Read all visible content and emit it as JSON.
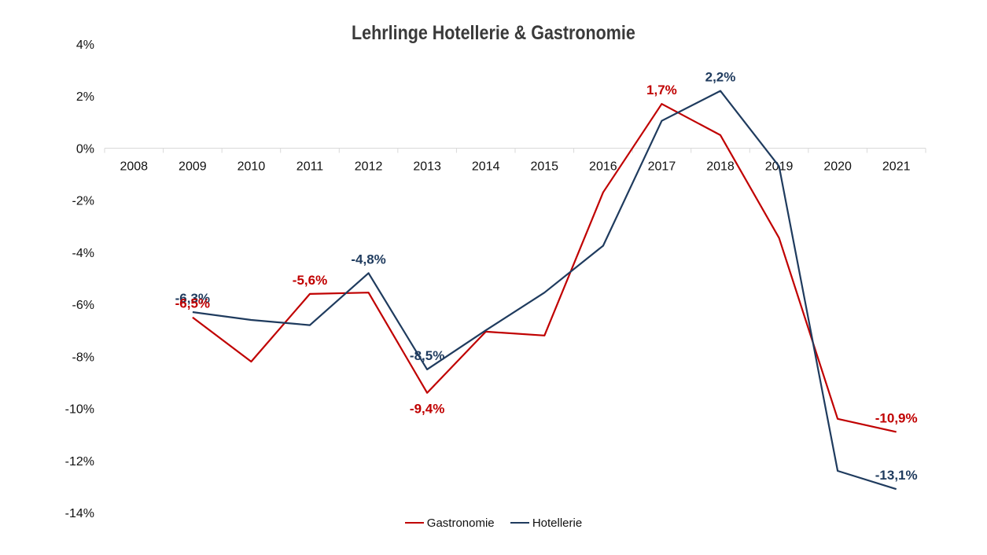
{
  "chart_data": {
    "type": "line",
    "title": "Lehrlinge Hotellerie & Gastronomie",
    "xlabel": "",
    "ylabel": "",
    "categories": [
      "2008",
      "2009",
      "2010",
      "2011",
      "2012",
      "2013",
      "2014",
      "2015",
      "2016",
      "2017",
      "2018",
      "2019",
      "2020",
      "2021"
    ],
    "ylim": [
      -14,
      4
    ],
    "y_ticks": [
      "4%",
      "2%",
      "0%",
      "-2%",
      "-4%",
      "-6%",
      "-8%",
      "-10%",
      "-12%",
      "-14%"
    ],
    "grid": false,
    "legend_position": "bottom",
    "series": [
      {
        "name": "Gastronomie",
        "color": "#c00000",
        "values": [
          null,
          -6.5,
          -8.2,
          -5.6,
          -5.55,
          -9.4,
          -7.05,
          -7.2,
          -1.7,
          1.7,
          0.5,
          -3.45,
          -10.4,
          -10.9
        ]
      },
      {
        "name": "Hotellerie",
        "color": "#1f3b5e",
        "values": [
          null,
          -6.3,
          -6.6,
          -6.8,
          -4.8,
          -8.5,
          -7.0,
          -5.55,
          -3.75,
          1.05,
          2.2,
          -0.7,
          -12.4,
          -13.1
        ]
      }
    ],
    "data_labels": [
      {
        "series": 1,
        "index": 1,
        "text": "-6,3%",
        "position": "above"
      },
      {
        "series": 0,
        "index": 1,
        "text": "-6,5%",
        "position": "above"
      },
      {
        "series": 0,
        "index": 3,
        "text": "-5,6%",
        "position": "above"
      },
      {
        "series": 1,
        "index": 4,
        "text": "-4,8%",
        "position": "above"
      },
      {
        "series": 1,
        "index": 5,
        "text": "-8,5%",
        "position": "above"
      },
      {
        "series": 0,
        "index": 5,
        "text": "-9,4%",
        "position": "below"
      },
      {
        "series": 0,
        "index": 9,
        "text": "1,7%",
        "position": "above"
      },
      {
        "series": 1,
        "index": 10,
        "text": "2,2%",
        "position": "above"
      },
      {
        "series": 0,
        "index": 13,
        "text": "-10,9%",
        "position": "above"
      },
      {
        "series": 1,
        "index": 13,
        "text": "-13,1%",
        "position": "above"
      }
    ]
  }
}
